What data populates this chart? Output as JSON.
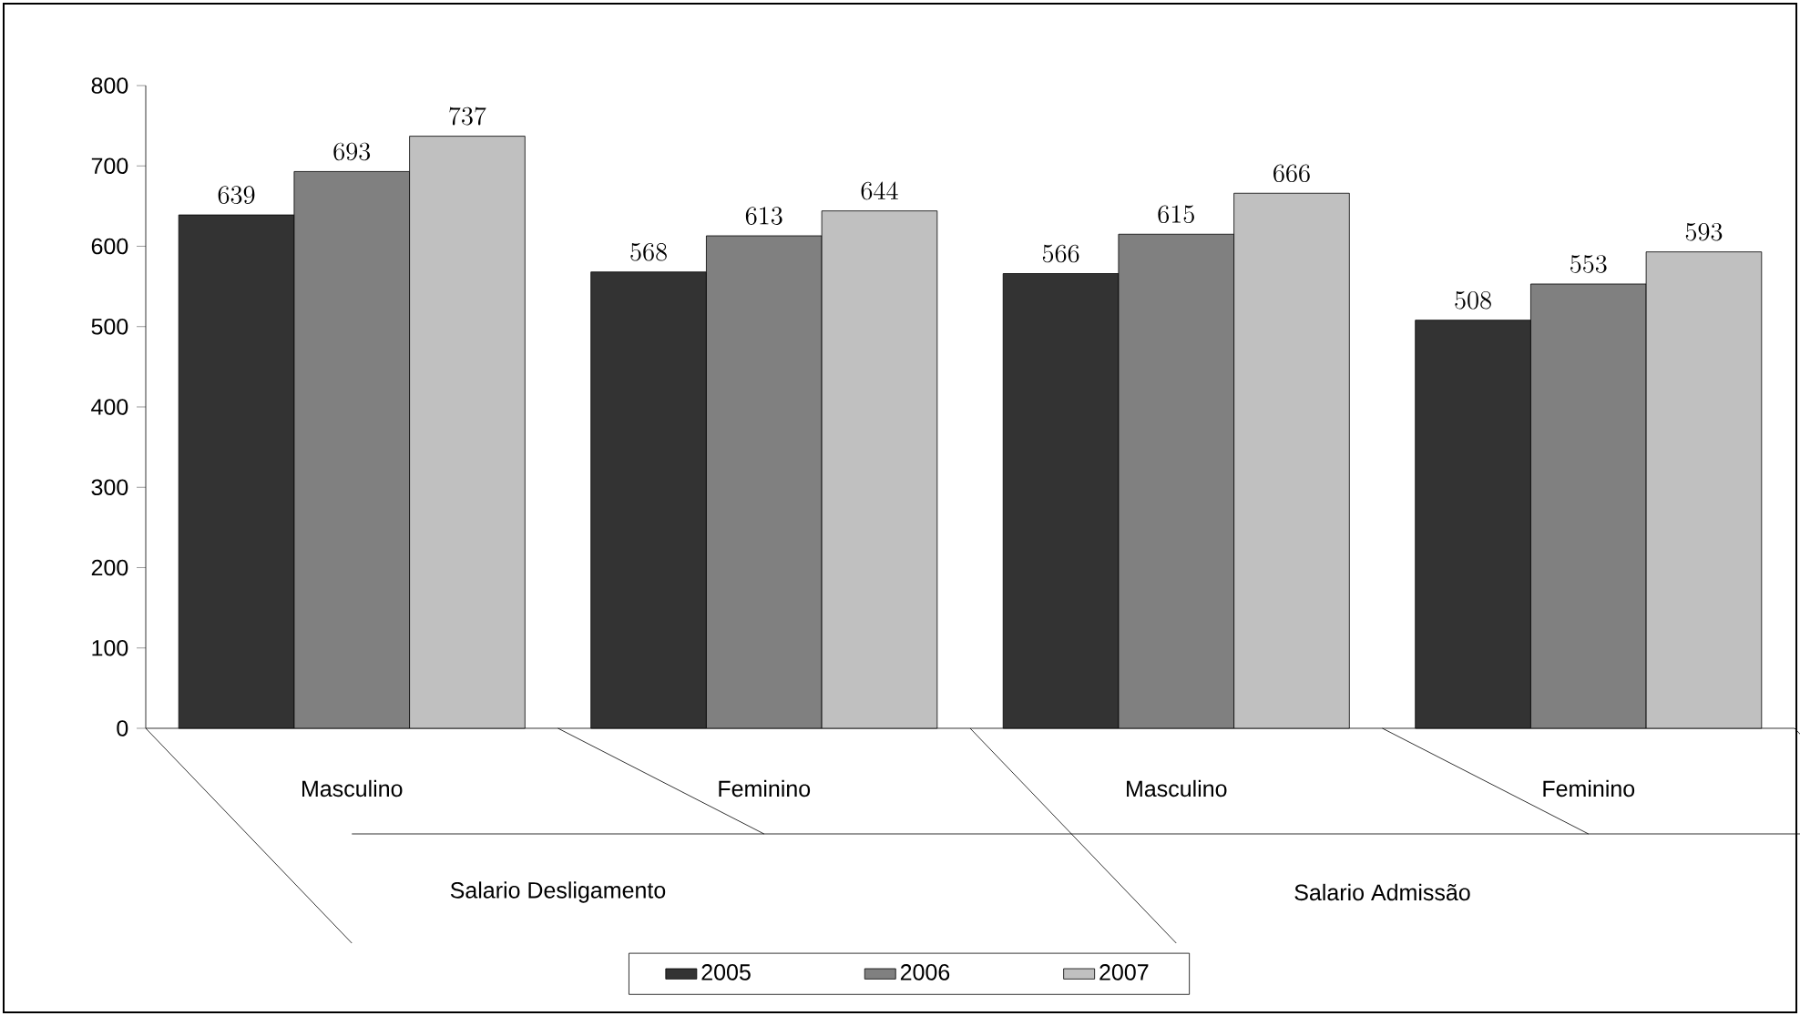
{
  "chart_data": {
    "type": "bar",
    "categories": [
      "Masculino",
      "Feminino",
      "Masculino",
      "Feminino"
    ],
    "series": [
      {
        "name": "2005",
        "color": "#333333",
        "values": [
          639,
          568,
          566,
          508
        ]
      },
      {
        "name": "2006",
        "color": "#808080",
        "values": [
          693,
          613,
          615,
          553
        ]
      },
      {
        "name": "2007",
        "color": "#c0c0c0",
        "values": [
          737,
          644,
          666,
          593
        ]
      }
    ],
    "annotations": [
      "Salario Desligamento",
      "Salario Admissão"
    ],
    "ylim": [
      0,
      800
    ],
    "yticks": [
      0,
      100,
      200,
      300,
      400,
      500,
      600,
      700,
      800
    ],
    "data_labels": true,
    "legend": "bottom",
    "grid": false
  }
}
